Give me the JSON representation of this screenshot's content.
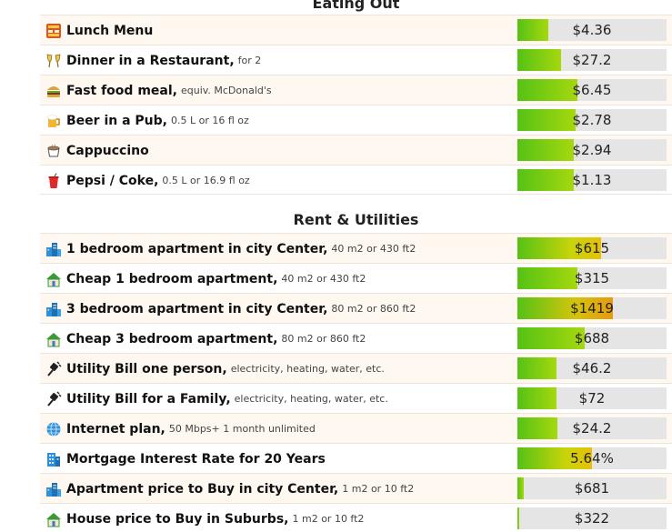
{
  "eating_out": {
    "title": "Eating Out",
    "rows": [
      {
        "name": "Lunch Menu",
        "note": "",
        "price": "$4.36",
        "level": 0.21,
        "icon": "menu-icon"
      },
      {
        "name": "Dinner in a Restaurant,",
        "note": "for 2",
        "price": "$27.2",
        "level": 0.29,
        "icon": "champagne-glasses-icon"
      },
      {
        "name": "Fast food meal,",
        "note": "equiv. McDonald's",
        "price": "$6.45",
        "level": 0.4,
        "icon": "burger-icon"
      },
      {
        "name": "Beer in a Pub,",
        "note": "0.5 L or 16 fl oz",
        "price": "$2.78",
        "level": 0.39,
        "icon": "beer-icon"
      },
      {
        "name": "Cappuccino",
        "note": "",
        "price": "$2.94",
        "level": 0.38,
        "icon": "coffee-cup-icon"
      },
      {
        "name": "Pepsi / Coke,",
        "note": "0.5 L or 16.9 fl oz",
        "price": "$1.13",
        "level": 0.38,
        "icon": "soda-cup-icon"
      }
    ]
  },
  "rent_utilities": {
    "title": "Rent & Utilities",
    "rows": [
      {
        "name": "1 bedroom apartment in city Center,",
        "note": "40 m2 or 430 ft2",
        "price": "$615",
        "level": 0.56,
        "icon": "city-buildings-icon"
      },
      {
        "name": "Cheap 1 bedroom apartment,",
        "note": "40 m2 or 430 ft2",
        "price": "$315",
        "level": 0.4,
        "icon": "house-icon"
      },
      {
        "name": "3 bedroom apartment in city Center,",
        "note": "80 m2 or 860 ft2",
        "price": "$1419",
        "level": 0.64,
        "icon": "city-buildings-icon"
      },
      {
        "name": "Cheap 3 bedroom apartment,",
        "note": "80 m2 or 860 ft2",
        "price": "$688",
        "level": 0.45,
        "icon": "house-icon"
      },
      {
        "name": "Utility Bill one person,",
        "note": "electricity, heating, water, etc.",
        "price": "$46.2",
        "level": 0.26,
        "icon": "plug-icon"
      },
      {
        "name": "Utility Bill for a Family,",
        "note": "electricity, heating, water, etc.",
        "price": "$72",
        "level": 0.26,
        "icon": "plug-icon"
      },
      {
        "name": "Internet plan,",
        "note": "50 Mbps+ 1 month unlimited",
        "price": "$24.2",
        "level": 0.27,
        "icon": "globe-icon"
      },
      {
        "name": "Mortgage Interest Rate for 20 Years",
        "note": "",
        "price": "5.64%",
        "level": 0.5,
        "icon": "office-building-icon"
      },
      {
        "name": "Apartment price to Buy in city Center,",
        "note": "1 m2 or 10 ft2",
        "price": "$681",
        "level": 0.04,
        "icon": "city-buildings-icon"
      },
      {
        "name": "House price to Buy in Suburbs,",
        "note": "1 m2 or 10 ft2",
        "price": "$322",
        "level": 0.01,
        "icon": "house-icon"
      }
    ]
  },
  "colors": {
    "row_odd": "#fef8f1",
    "bar_track": "#e5e5e5",
    "bar_green": "#55c215"
  }
}
